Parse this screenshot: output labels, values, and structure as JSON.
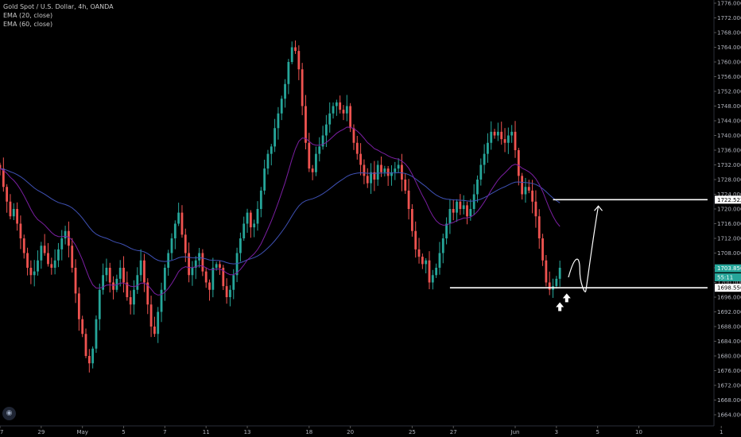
{
  "legend": {
    "symbol": "Gold Spot / U.S. Dollar, 4h, OANDA",
    "ema20": "EMA (20, close)",
    "ema60": "EMA (60, close)"
  },
  "colors": {
    "background": "#000000",
    "up": "#26a69a",
    "down": "#ef5350",
    "ema20": "#7b1fa2",
    "ema60": "#3f51b5",
    "lines": "#ffffff",
    "priceTagLast": "#26a69a"
  },
  "chart_data": {
    "type": "candlestick",
    "title": "Gold Spot / U.S. Dollar, 4h, OANDA",
    "ylim": [
      1662,
      1778
    ],
    "y_ticks": [
      "1664.000",
      "1668.000",
      "1672.000",
      "1676.000",
      "1680.000",
      "1684.000",
      "1688.000",
      "1692.000",
      "1696.000",
      "1700.000",
      "1704.000",
      "1708.000",
      "1712.000",
      "1716.000",
      "1720.000",
      "1724.000",
      "1728.000",
      "1732.000",
      "1736.000",
      "1740.000",
      "1744.000",
      "1748.000",
      "1752.000",
      "1756.000",
      "1760.000",
      "1764.000",
      "1768.000",
      "1772.000",
      "1776.000"
    ],
    "x_ticks": [
      {
        "label": "27",
        "i": 0
      },
      {
        "label": "29",
        "i": 12
      },
      {
        "label": "May",
        "i": 24
      },
      {
        "label": "5",
        "i": 36
      },
      {
        "label": "7",
        "i": 48
      },
      {
        "label": "11",
        "i": 60
      },
      {
        "label": "13",
        "i": 72
      },
      {
        "label": "18",
        "i": 90
      },
      {
        "label": "20",
        "i": 102
      },
      {
        "label": "25",
        "i": 120
      },
      {
        "label": "27",
        "i": 132
      },
      {
        "label": "Jun",
        "i": 150
      },
      {
        "label": "3",
        "i": 162
      },
      {
        "label": "5",
        "i": 174
      },
      {
        "label": "10",
        "i": 186
      },
      {
        "label": "1",
        "i": 210
      }
    ],
    "candles_close": [
      1731,
      1726,
      1722,
      1718,
      1720,
      1716,
      1712,
      1708,
      1704,
      1702,
      1703,
      1706,
      1710,
      1708,
      1705,
      1704,
      1706,
      1709,
      1712,
      1714,
      1710,
      1704,
      1697,
      1690,
      1686,
      1680,
      1678,
      1682,
      1690,
      1698,
      1702,
      1704,
      1700,
      1698,
      1701,
      1704,
      1700,
      1696,
      1694,
      1698,
      1702,
      1706,
      1700,
      1694,
      1688,
      1686,
      1692,
      1698,
      1704,
      1708,
      1712,
      1716,
      1719,
      1713,
      1708,
      1702,
      1704,
      1706,
      1708,
      1703,
      1700,
      1698,
      1704,
      1705,
      1704,
      1699,
      1696,
      1698,
      1702,
      1708,
      1712,
      1716,
      1719,
      1715,
      1716,
      1720,
      1725,
      1731,
      1735,
      1737,
      1742,
      1746,
      1750,
      1754,
      1760,
      1764,
      1763,
      1758,
      1748,
      1738,
      1731,
      1730,
      1735,
      1737,
      1740,
      1743,
      1746,
      1748,
      1749,
      1747,
      1746,
      1748,
      1742,
      1738,
      1735,
      1732,
      1729,
      1727,
      1730,
      1728,
      1732,
      1730,
      1731,
      1729,
      1730,
      1731,
      1732,
      1728,
      1725,
      1720,
      1714,
      1709,
      1707,
      1705,
      1706,
      1700,
      1702,
      1704,
      1708,
      1712,
      1716,
      1720,
      1719,
      1722,
      1720,
      1721,
      1718,
      1720,
      1724,
      1728,
      1732,
      1735,
      1738,
      1741,
      1740,
      1741,
      1739,
      1738,
      1740,
      1741,
      1736,
      1729,
      1724,
      1726,
      1725,
      1722,
      1718,
      1712,
      1706,
      1700,
      1698,
      1699,
      1701,
      1704
    ],
    "candles_open_first": 1732,
    "ema20_last": 1720,
    "ema60_last": 1724,
    "price_tags": [
      {
        "label": "1722.522",
        "value": 1722.522,
        "style": "line"
      },
      {
        "label": "1703.850",
        "value": 1703.85,
        "style": "last"
      },
      {
        "label": "55:11",
        "value": 1701.4,
        "style": "timer"
      },
      {
        "label": "1698.556",
        "value": 1698.556,
        "style": "line"
      }
    ],
    "horizontal_lines": [
      {
        "value": 1722.522,
        "from_i": 161,
        "to_i": 206
      },
      {
        "value": 1698.556,
        "from_i": 131,
        "to_i": 206
      }
    ],
    "projection_path_values": [
      1701.4,
      1707.2,
      1703.5,
      1697.6,
      1710.0,
      1720.8
    ],
    "arrows": [
      {
        "i": 163,
        "value": 1694.6
      },
      {
        "i": 165,
        "value": 1697.0
      }
    ]
  }
}
